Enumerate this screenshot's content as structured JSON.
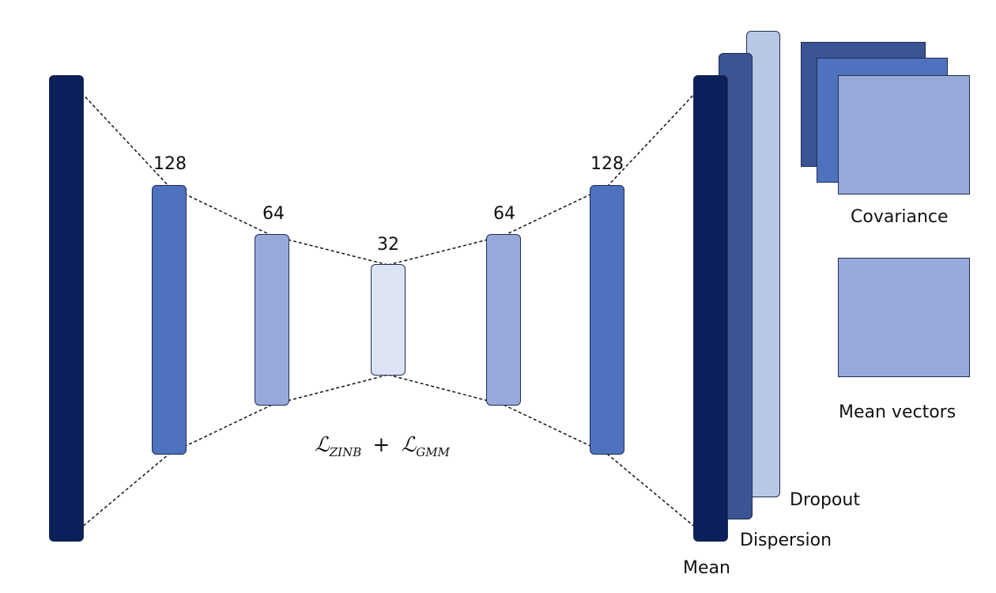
{
  "colors": {
    "navy": "#0b1f5a",
    "dark_blue": "#3a5494",
    "blue": "#4f72be",
    "mid_blue": "#96a9d8",
    "light_blue": "#b9c7e6",
    "pale_blue": "#dce3f3",
    "stroke": "#1f2d4f"
  },
  "encoder": {
    "layer1_label": "128",
    "layer2_label": "64",
    "bottleneck_label": "32"
  },
  "decoder": {
    "layer1_label": "64",
    "layer2_label": "128"
  },
  "loss": {
    "term1_symbol": "ℒ",
    "term1_sub": "ZINB",
    "operator": "+",
    "term2_symbol": "ℒ",
    "term2_sub": "GMM"
  },
  "outputs": {
    "mean": "Mean",
    "dispersion": "Dispersion",
    "dropout": "Dropout"
  },
  "gmm": {
    "covariance": "Covariance",
    "mean_vectors": "Mean vectors"
  }
}
